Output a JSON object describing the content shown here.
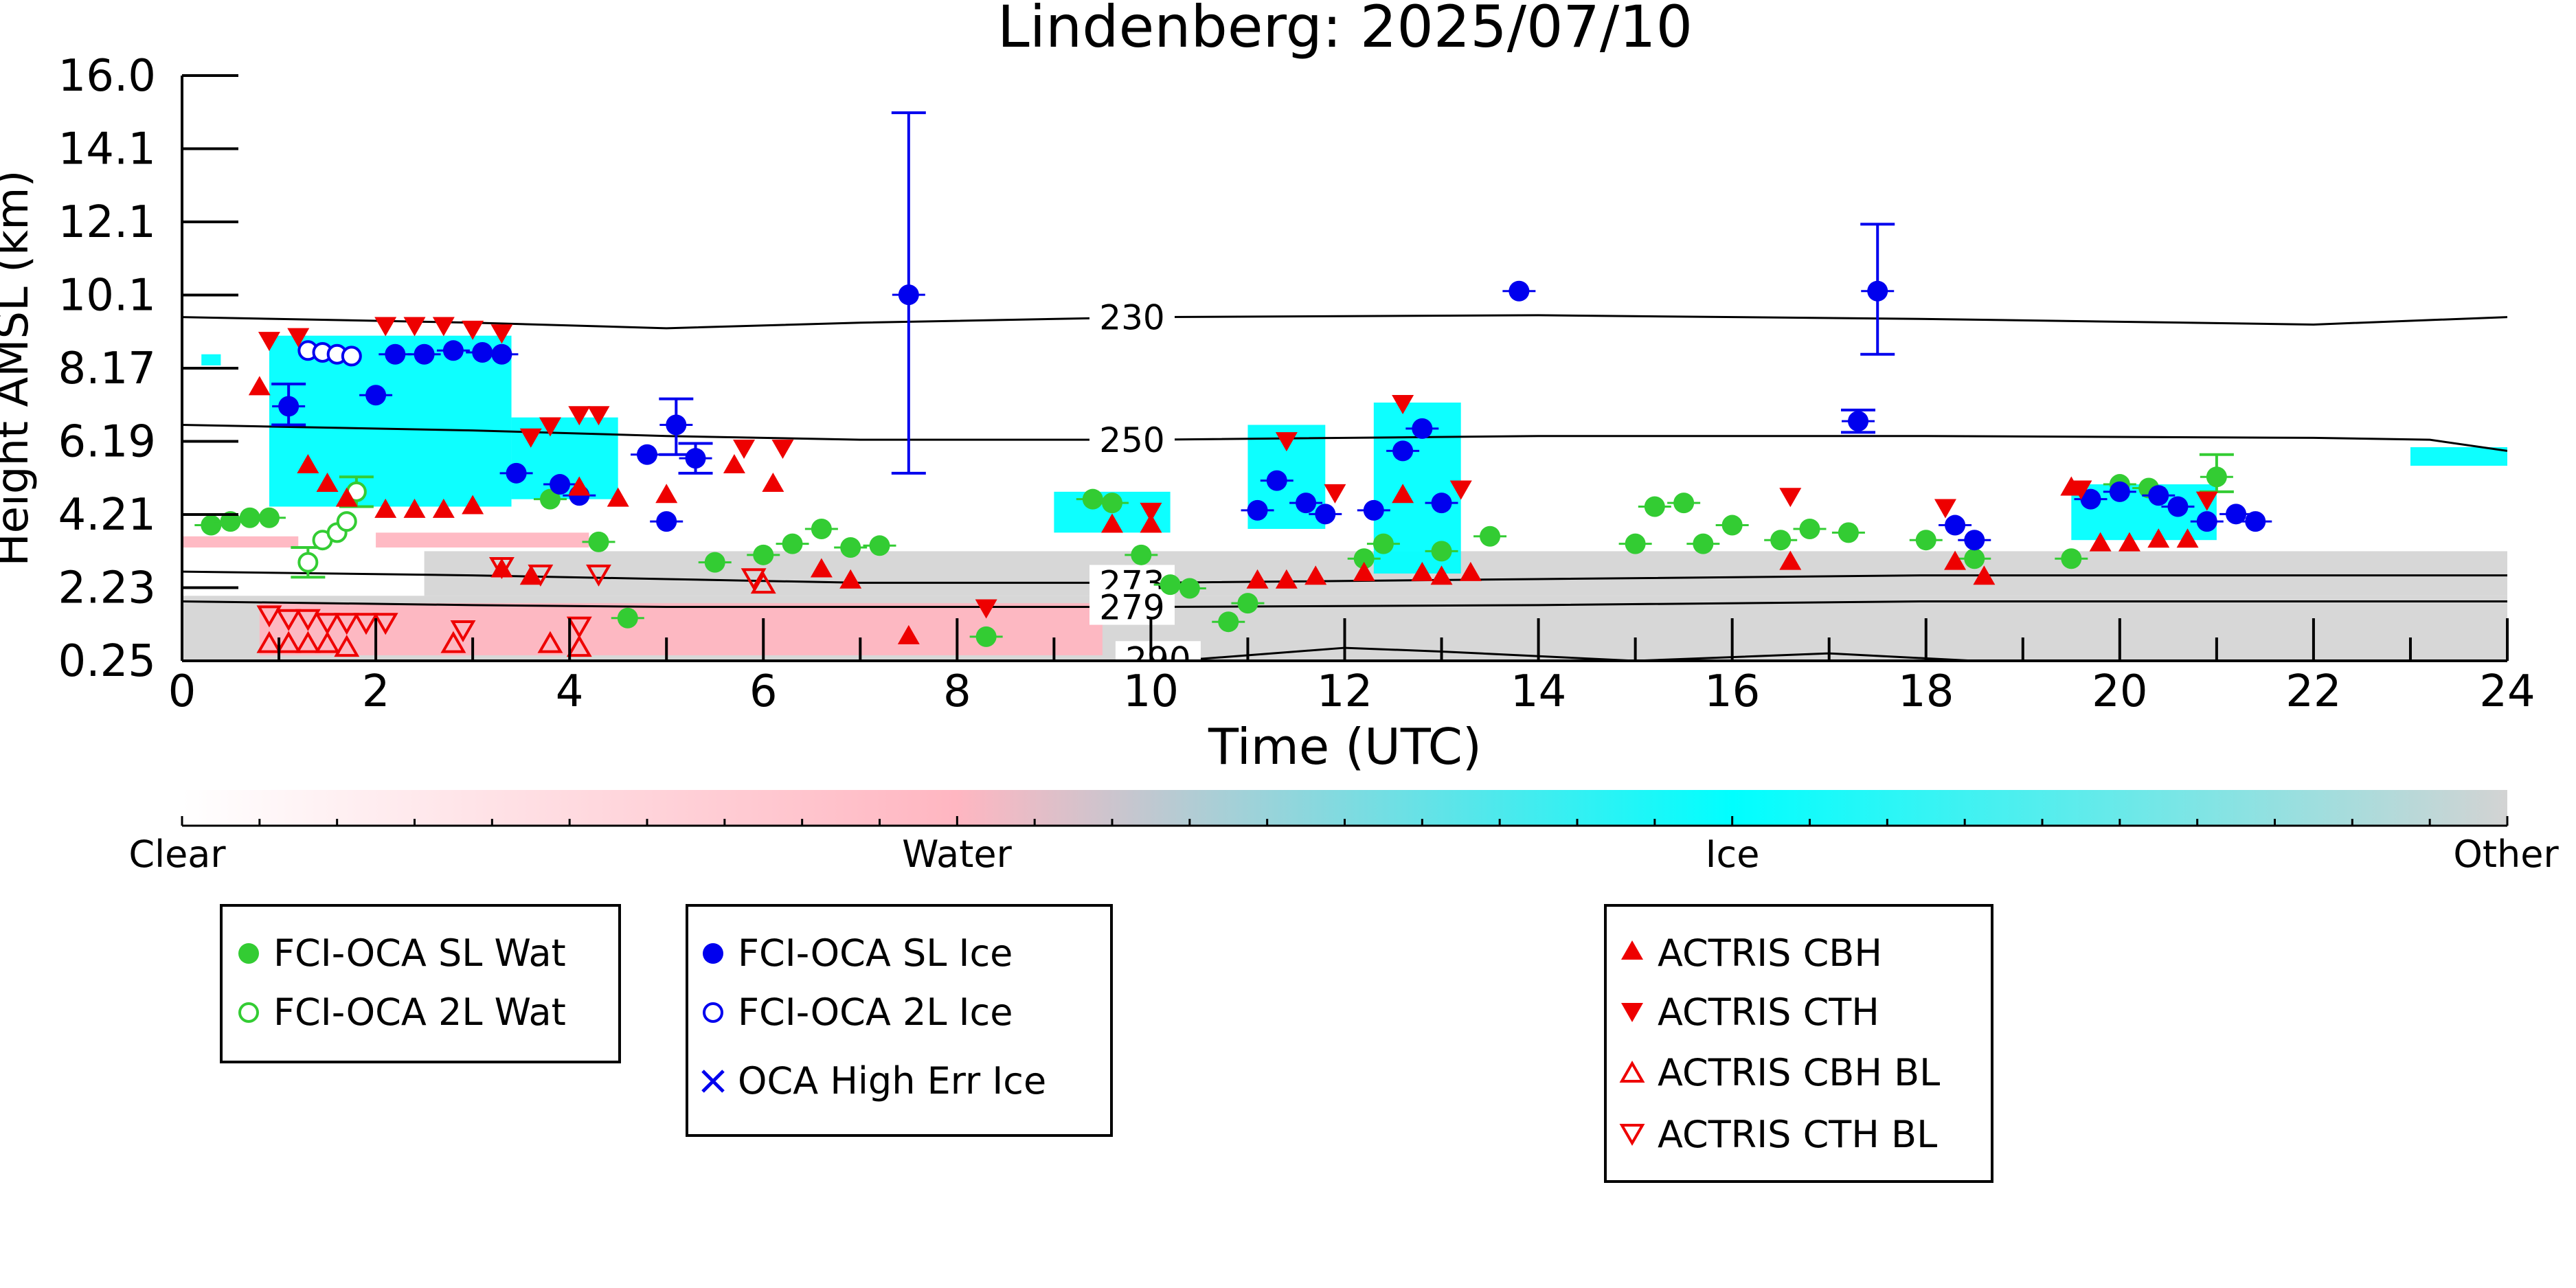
{
  "chart_data": {
    "type": "scatter",
    "title": "Lindenberg: 2025/07/10",
    "xlabel": "Time (UTC)",
    "ylabel": "Height AMSL (km)",
    "xlim": [
      0,
      24
    ],
    "xticks": [
      "0",
      "2",
      "4",
      "6",
      "8",
      "10",
      "12",
      "14",
      "16",
      "18",
      "20",
      "22",
      "24"
    ],
    "yticks": [
      "0.25",
      "2.23",
      "4.21",
      "6.19",
      "8.17",
      "10.1",
      "12.1",
      "14.1",
      "16.0"
    ],
    "y_scale": "linear",
    "ylim": [
      0.25,
      16.0
    ],
    "colorbar": {
      "labels": [
        "Clear",
        "Water",
        "Ice",
        "Other"
      ],
      "colors": [
        "#ffffff",
        "#ffb6c1",
        "#00ffff",
        "#d3d3d3"
      ]
    },
    "isotherms": [
      {
        "label": "230",
        "x": [
          0,
          3,
          5,
          7,
          10,
          14,
          18,
          22,
          24
        ],
        "y": [
          9.5,
          9.35,
          9.2,
          9.35,
          9.5,
          9.55,
          9.45,
          9.3,
          9.5
        ]
      },
      {
        "label": "250",
        "x": [
          0,
          3,
          5,
          7,
          10,
          14,
          18,
          22,
          23.2,
          24
        ],
        "y": [
          6.6,
          6.45,
          6.3,
          6.2,
          6.2,
          6.3,
          6.3,
          6.25,
          6.2,
          5.9
        ]
      },
      {
        "label": "273",
        "x": [
          0,
          3,
          5,
          7,
          10,
          14,
          18,
          22,
          24
        ],
        "y": [
          2.65,
          2.55,
          2.45,
          2.35,
          2.35,
          2.45,
          2.55,
          2.55,
          2.55
        ]
      },
      {
        "label": "279",
        "x": [
          0,
          3,
          5,
          7,
          10,
          14,
          18,
          22,
          24
        ],
        "y": [
          1.85,
          1.75,
          1.7,
          1.7,
          1.7,
          1.75,
          1.85,
          1.85,
          1.85
        ]
      },
      {
        "label": "290",
        "x": [
          10.5,
          12,
          13,
          15,
          17,
          18.5
        ],
        "y": [
          0.3,
          0.6,
          0.5,
          0.25,
          0.45,
          0.25
        ]
      }
    ],
    "series": [
      {
        "name": "FCI-OCA SL Wat",
        "color": "#33cc33",
        "marker": "circle-filled",
        "points": [
          [
            0.3,
            3.9
          ],
          [
            0.5,
            4.0
          ],
          [
            0.7,
            4.1
          ],
          [
            0.9,
            4.1
          ],
          [
            3.8,
            4.6
          ],
          [
            4.3,
            3.45
          ],
          [
            4.6,
            1.4
          ],
          [
            5.5,
            2.9
          ],
          [
            6.0,
            3.1
          ],
          [
            6.3,
            3.4
          ],
          [
            6.6,
            3.8
          ],
          [
            6.9,
            3.3
          ],
          [
            7.2,
            3.35
          ],
          [
            8.3,
            0.9
          ],
          [
            9.4,
            4.6
          ],
          [
            9.6,
            4.5
          ],
          [
            9.9,
            3.1
          ],
          [
            10.2,
            2.3
          ],
          [
            10.4,
            2.2
          ],
          [
            10.8,
            1.3
          ],
          [
            11.0,
            1.8
          ],
          [
            12.2,
            3.0
          ],
          [
            12.4,
            3.4
          ],
          [
            13.0,
            3.2
          ],
          [
            13.5,
            3.6
          ],
          [
            15.0,
            3.4
          ],
          [
            15.2,
            4.4
          ],
          [
            15.5,
            4.5
          ],
          [
            15.7,
            3.4
          ],
          [
            16.0,
            3.9
          ],
          [
            16.5,
            3.5
          ],
          [
            16.8,
            3.8
          ],
          [
            17.2,
            3.7
          ],
          [
            18.0,
            3.5
          ],
          [
            18.5,
            3.0
          ],
          [
            19.5,
            3.0
          ],
          [
            20.0,
            5.0
          ],
          [
            20.3,
            4.9
          ],
          [
            21.0,
            5.2
          ]
        ]
      },
      {
        "name": "FCI-OCA 2L Wat",
        "color": "#33cc33",
        "marker": "circle-open",
        "points": [
          [
            1.3,
            2.9
          ],
          [
            1.45,
            3.5
          ],
          [
            1.6,
            3.7
          ],
          [
            1.7,
            4.0
          ],
          [
            1.8,
            4.8
          ]
        ]
      },
      {
        "name": "FCI-OCA SL Ice",
        "color": "#0000ee",
        "marker": "circle-filled",
        "points": [
          [
            1.1,
            7.1
          ],
          [
            2.0,
            7.4
          ],
          [
            2.2,
            8.5
          ],
          [
            2.5,
            8.5
          ],
          [
            2.8,
            8.6
          ],
          [
            3.1,
            8.55
          ],
          [
            3.3,
            8.5
          ],
          [
            3.45,
            5.3
          ],
          [
            3.9,
            5.0
          ],
          [
            4.1,
            4.7
          ],
          [
            4.8,
            5.8
          ],
          [
            5.1,
            6.6
          ],
          [
            5.3,
            5.7
          ],
          [
            5.0,
            4.0
          ],
          [
            7.5,
            10.1
          ],
          [
            11.1,
            4.3
          ],
          [
            11.3,
            5.1
          ],
          [
            11.6,
            4.5
          ],
          [
            11.8,
            4.2
          ],
          [
            12.3,
            4.3
          ],
          [
            12.6,
            5.9
          ],
          [
            12.8,
            6.5
          ],
          [
            13.0,
            4.5
          ],
          [
            13.8,
            10.2
          ],
          [
            17.3,
            6.7
          ],
          [
            17.5,
            10.2
          ],
          [
            18.3,
            3.9
          ],
          [
            18.5,
            3.5
          ],
          [
            19.7,
            4.6
          ],
          [
            20.0,
            4.8
          ],
          [
            20.4,
            4.7
          ],
          [
            20.6,
            4.4
          ],
          [
            20.9,
            4.0
          ],
          [
            21.2,
            4.2
          ],
          [
            21.4,
            4.0
          ]
        ]
      },
      {
        "name": "FCI-OCA 2L Ice",
        "color": "#0000ee",
        "marker": "circle-open",
        "points": [
          [
            1.3,
            8.6
          ],
          [
            1.45,
            8.55
          ],
          [
            1.6,
            8.5
          ],
          [
            1.75,
            8.45
          ]
        ]
      },
      {
        "name": "OCA High Err Ice",
        "color": "#0000ee",
        "marker": "x",
        "points": []
      },
      {
        "name": "ACTRIS CBH",
        "color": "#ee0000",
        "marker": "triangle-up-filled",
        "points": [
          [
            0.8,
            7.6
          ],
          [
            1.3,
            5.5
          ],
          [
            1.5,
            5.0
          ],
          [
            1.7,
            4.6
          ],
          [
            2.1,
            4.3
          ],
          [
            2.4,
            4.3
          ],
          [
            2.7,
            4.3
          ],
          [
            3.0,
            4.4
          ],
          [
            3.3,
            2.7
          ],
          [
            3.6,
            2.5
          ],
          [
            4.1,
            4.9
          ],
          [
            4.5,
            4.6
          ],
          [
            5.0,
            4.7
          ],
          [
            5.7,
            5.5
          ],
          [
            6.1,
            5.0
          ],
          [
            6.6,
            2.7
          ],
          [
            6.9,
            2.4
          ],
          [
            7.5,
            0.9
          ],
          [
            9.6,
            3.9
          ],
          [
            10.0,
            3.9
          ],
          [
            11.1,
            2.4
          ],
          [
            11.4,
            2.4
          ],
          [
            11.7,
            2.5
          ],
          [
            12.2,
            2.6
          ],
          [
            12.6,
            4.7
          ],
          [
            12.8,
            2.6
          ],
          [
            13.0,
            2.5
          ],
          [
            13.3,
            2.6
          ],
          [
            16.6,
            2.9
          ],
          [
            18.3,
            2.9
          ],
          [
            18.6,
            2.5
          ],
          [
            19.5,
            4.9
          ],
          [
            19.8,
            3.4
          ],
          [
            20.1,
            3.4
          ],
          [
            20.4,
            3.5
          ],
          [
            20.7,
            3.5
          ]
        ]
      },
      {
        "name": "ACTRIS CTH",
        "color": "#ee0000",
        "marker": "triangle-down-filled",
        "points": [
          [
            0.9,
            8.9
          ],
          [
            1.2,
            9.0
          ],
          [
            2.1,
            9.3
          ],
          [
            2.4,
            9.3
          ],
          [
            2.7,
            9.3
          ],
          [
            3.0,
            9.2
          ],
          [
            3.3,
            9.1
          ],
          [
            3.6,
            6.3
          ],
          [
            3.8,
            6.6
          ],
          [
            4.1,
            6.9
          ],
          [
            4.3,
            6.9
          ],
          [
            5.8,
            6.0
          ],
          [
            6.2,
            6.0
          ],
          [
            8.3,
            1.7
          ],
          [
            10.0,
            4.3
          ],
          [
            11.4,
            6.2
          ],
          [
            11.9,
            4.8
          ],
          [
            12.6,
            7.2
          ],
          [
            13.2,
            4.9
          ],
          [
            16.6,
            4.7
          ],
          [
            18.2,
            4.4
          ],
          [
            19.6,
            4.9
          ],
          [
            20.9,
            4.6
          ]
        ]
      },
      {
        "name": "ACTRIS CBH BL",
        "color": "#ee0000",
        "marker": "triangle-up-open",
        "points": [
          [
            0.9,
            0.7
          ],
          [
            1.1,
            0.7
          ],
          [
            1.3,
            0.7
          ],
          [
            1.5,
            0.7
          ],
          [
            1.7,
            0.6
          ],
          [
            2.8,
            0.7
          ],
          [
            3.8,
            0.7
          ],
          [
            4.1,
            0.6
          ],
          [
            6.0,
            2.3
          ]
        ]
      },
      {
        "name": "ACTRIS CTH BL",
        "color": "#ee0000",
        "marker": "triangle-down-open",
        "points": [
          [
            0.9,
            1.5
          ],
          [
            1.1,
            1.4
          ],
          [
            1.3,
            1.4
          ],
          [
            1.5,
            1.3
          ],
          [
            1.7,
            1.3
          ],
          [
            1.9,
            1.3
          ],
          [
            2.1,
            1.3
          ],
          [
            2.9,
            1.1
          ],
          [
            3.3,
            2.8
          ],
          [
            3.7,
            2.6
          ],
          [
            4.3,
            2.6
          ],
          [
            4.1,
            1.2
          ],
          [
            5.9,
            2.5
          ]
        ]
      }
    ],
    "error_bars": [
      {
        "series": "FCI-OCA SL Ice",
        "x": 7.5,
        "y": 10.1,
        "low": 5.3,
        "high": 15.0
      },
      {
        "series": "FCI-OCA SL Ice",
        "x": 17.5,
        "y": 10.2,
        "low": 8.5,
        "high": 12.0
      },
      {
        "series": "FCI-OCA SL Ice",
        "x": 17.3,
        "y": 6.7,
        "low": 6.4,
        "high": 7.0
      },
      {
        "series": "FCI-OCA SL Ice",
        "x": 5.1,
        "y": 6.6,
        "low": 5.8,
        "high": 7.3
      },
      {
        "series": "FCI-OCA SL Ice",
        "x": 5.3,
        "y": 5.7,
        "low": 5.3,
        "high": 6.1
      },
      {
        "series": "FCI-OCA SL Ice",
        "x": 1.1,
        "y": 7.1,
        "low": 6.6,
        "high": 7.7
      },
      {
        "series": "FCI-OCA SL Wat",
        "x": 21.0,
        "y": 5.2,
        "low": 4.8,
        "high": 5.8
      },
      {
        "series": "FCI-OCA 2L Wat",
        "x": 1.8,
        "y": 4.8,
        "low": 4.4,
        "high": 5.2
      },
      {
        "series": "FCI-OCA 2L Wat",
        "x": 1.3,
        "y": 2.9,
        "low": 2.5,
        "high": 3.3
      }
    ],
    "cloud_regions": [
      {
        "phase": "Ice",
        "x": [
          0.9,
          3.4
        ],
        "y": [
          4.4,
          9.0
        ]
      },
      {
        "phase": "Ice",
        "x": [
          3.4,
          4.5
        ],
        "y": [
          4.6,
          6.8
        ]
      },
      {
        "phase": "Ice",
        "x": [
          9.0,
          10.2
        ],
        "y": [
          3.7,
          4.8
        ]
      },
      {
        "phase": "Ice",
        "x": [
          11.0,
          11.8
        ],
        "y": [
          3.8,
          6.6
        ]
      },
      {
        "phase": "Ice",
        "x": [
          12.3,
          13.2
        ],
        "y": [
          2.6,
          7.2
        ]
      },
      {
        "phase": "Ice",
        "x": [
          19.5,
          21.0
        ],
        "y": [
          3.5,
          5.0
        ]
      },
      {
        "phase": "Ice",
        "x": [
          23.0,
          24.0
        ],
        "y": [
          5.5,
          6.0
        ]
      },
      {
        "phase": "Ice",
        "x": [
          0.2,
          0.4
        ],
        "y": [
          8.2,
          8.5
        ]
      },
      {
        "phase": "Water",
        "x": [
          0,
          1.2
        ],
        "y": [
          3.3,
          3.6
        ]
      },
      {
        "phase": "Water",
        "x": [
          2.0,
          4.2
        ],
        "y": [
          3.3,
          3.7
        ]
      },
      {
        "phase": "Water",
        "x": [
          0.8,
          9.5
        ],
        "y": [
          0.4,
          1.8
        ]
      },
      {
        "phase": "Other",
        "x": [
          0,
          24
        ],
        "y": [
          0.25,
          2.0
        ]
      },
      {
        "phase": "Other",
        "x": [
          2.5,
          24
        ],
        "y": [
          2.0,
          3.2
        ]
      }
    ],
    "legends": [
      [
        "FCI-OCA SL Wat",
        "FCI-OCA 2L Wat"
      ],
      [
        "FCI-OCA SL Ice",
        "FCI-OCA 2L Ice",
        "OCA High Err Ice"
      ],
      [
        "ACTRIS CBH",
        "ACTRIS CTH",
        "ACTRIS CBH BL",
        "ACTRIS CTH BL"
      ]
    ]
  }
}
